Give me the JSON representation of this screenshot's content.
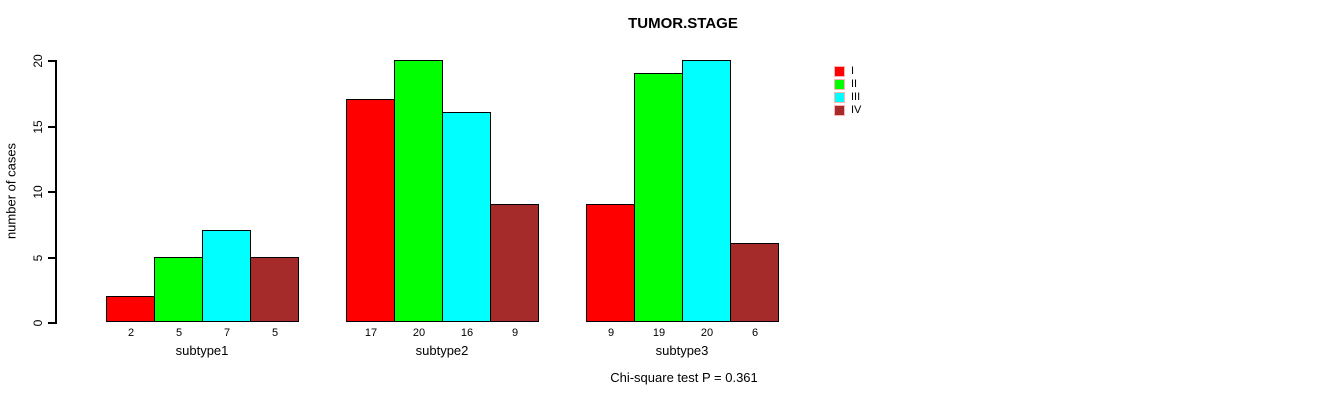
{
  "title": "TUMOR.STAGE",
  "footer_note": "Chi-square test P = 0.361",
  "colors": {
    "stage_I": "#ff0000",
    "stage_II": "#00ff00",
    "stage_III": "#00ffff",
    "stage_IV": "#a52a2a",
    "axis": "#000000",
    "legend_swatch_border": "#ffb3b3"
  },
  "chart_data": {
    "type": "bar",
    "title": "TUMOR.STAGE",
    "xlabel": "",
    "ylabel": "number of cases",
    "ylim": [
      0,
      20
    ],
    "yticks": [
      "0",
      "5",
      "10",
      "15",
      "20"
    ],
    "grid": false,
    "grouped": true,
    "show_values_under_bars": true,
    "legend_position": "right",
    "categories": [
      "subtype1",
      "subtype2",
      "subtype3"
    ],
    "series": [
      {
        "name": "I",
        "color": "#ff0000",
        "values": [
          2,
          17,
          9
        ]
      },
      {
        "name": "II",
        "color": "#00ff00",
        "values": [
          5,
          20,
          19
        ]
      },
      {
        "name": "III",
        "color": "#00ffff",
        "values": [
          7,
          16,
          20
        ]
      },
      {
        "name": "IV",
        "color": "#a52a2a",
        "values": [
          5,
          9,
          6
        ]
      }
    ],
    "annotation": "Chi-square test P = 0.361"
  }
}
